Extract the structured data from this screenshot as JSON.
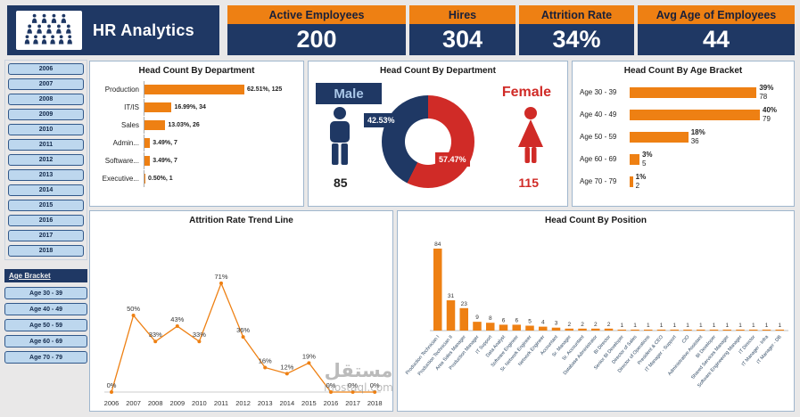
{
  "header": {
    "title": "HR Analytics"
  },
  "kpis": [
    {
      "label": "Active Employees",
      "value": "200"
    },
    {
      "label": "Hires",
      "value": "304"
    },
    {
      "label": "Attrition Rate",
      "value": "34%"
    },
    {
      "label": "Avg Age of Employees",
      "value": "44"
    }
  ],
  "year_slicer": {
    "items": [
      "2006",
      "2007",
      "2008",
      "2009",
      "2010",
      "2011",
      "2012",
      "2013",
      "2014",
      "2015",
      "2016",
      "2017",
      "2018"
    ]
  },
  "age_slicer": {
    "title": "Age Bracket",
    "items": [
      "Age 30 - 39",
      "Age 40 - 49",
      "Age 50 - 59",
      "Age 60 - 69",
      "Age 70 - 79"
    ]
  },
  "colors": {
    "navy": "#1F3864",
    "orange": "#EE8013",
    "red": "#D02B27",
    "slicer_blue": "#BDD7EE",
    "background": "#E9E8E8"
  },
  "watermark": {
    "arabic": "مستقل",
    "domain": "mostaql.com"
  },
  "chart_data": [
    {
      "id": "dept",
      "type": "bar",
      "orientation": "horizontal",
      "title": "Head Count By Department",
      "categories": [
        "Production",
        "IT/IS",
        "Sales",
        "Admin...",
        "Software...",
        "Executive..."
      ],
      "values": [
        125,
        34,
        26,
        7,
        7,
        1
      ],
      "percents": [
        62.51,
        16.99,
        13.03,
        3.49,
        3.49,
        0.5
      ],
      "value_labels": [
        "62.51%, 125",
        "16.99%, 34",
        "13.03%, 26",
        "3.49%, 7",
        "3.49%, 7",
        "0.50%, 1"
      ],
      "xlim": [
        0,
        70
      ],
      "legend": "none"
    },
    {
      "id": "gender",
      "type": "pie",
      "title": "Head Count By Department",
      "slices": [
        {
          "name": "Male",
          "percent": 42.53,
          "percent_label": "42.53%",
          "count": 85,
          "color": "#1F3864"
        },
        {
          "name": "Female",
          "percent": 57.47,
          "percent_label": "57.47%",
          "count": 115,
          "color": "#D02B27"
        }
      ]
    },
    {
      "id": "age",
      "type": "bar",
      "orientation": "horizontal",
      "title": "Head Count By Age Bracket",
      "categories": [
        "Age 30 - 39",
        "Age 40 - 49",
        "Age 50 - 59",
        "Age 60 - 69",
        "Age 70 - 79"
      ],
      "percents": [
        39,
        40,
        18,
        3,
        1
      ],
      "counts": [
        78,
        79,
        36,
        5,
        2
      ],
      "percent_labels": [
        "39%",
        "40%",
        "18%",
        "3%",
        "1%"
      ],
      "xlim": [
        0,
        45
      ],
      "legend": "none"
    },
    {
      "id": "attrition",
      "type": "line",
      "title": "Attrition Rate Trend Line",
      "x": [
        "2006",
        "2007",
        "2008",
        "2009",
        "2010",
        "2011",
        "2012",
        "2013",
        "2014",
        "2015",
        "2016",
        "2017",
        "2018"
      ],
      "values": [
        0,
        50,
        33,
        43,
        33,
        71,
        36,
        16,
        12,
        19,
        0,
        0,
        0
      ],
      "value_labels": [
        "0%",
        "50%",
        "33%",
        "43%",
        "33%",
        "71%",
        "36%",
        "16%",
        "12%",
        "19%",
        "0%",
        "0%",
        "0%"
      ],
      "ylim": [
        0,
        80
      ],
      "grid": "off",
      "legend": "none"
    },
    {
      "id": "position",
      "type": "bar",
      "orientation": "vertical",
      "title": "Head Count By Position",
      "categories": [
        "Production Technician I",
        "Production Technician II",
        "Area Sales Manager",
        "Production Manager",
        "IT Support",
        "Data Analyst",
        "Software Engineer",
        "Sr. Network Engineer",
        "Network Engineer",
        "Accountant",
        "Sr. Manager",
        "Sr. Accountant",
        "Database Administrator",
        "BI Director",
        "Senior BI Developer",
        "Director of Sales",
        "Director of Operations",
        "President & CEO",
        "IT Manager - Support",
        "CIO",
        "Administrative Assistant",
        "BI Developer",
        "Shared Services Manager",
        "Software Engineering Manager",
        "IT Director",
        "IT Manager - Infra",
        "IT Manager - DB"
      ],
      "values": [
        84,
        31,
        23,
        9,
        8,
        6,
        6,
        5,
        4,
        3,
        2,
        2,
        2,
        2,
        1,
        1,
        1,
        1,
        1,
        1,
        1,
        1,
        1,
        1,
        1,
        1,
        1
      ],
      "ylim": [
        0,
        90
      ],
      "legend": "none"
    }
  ]
}
